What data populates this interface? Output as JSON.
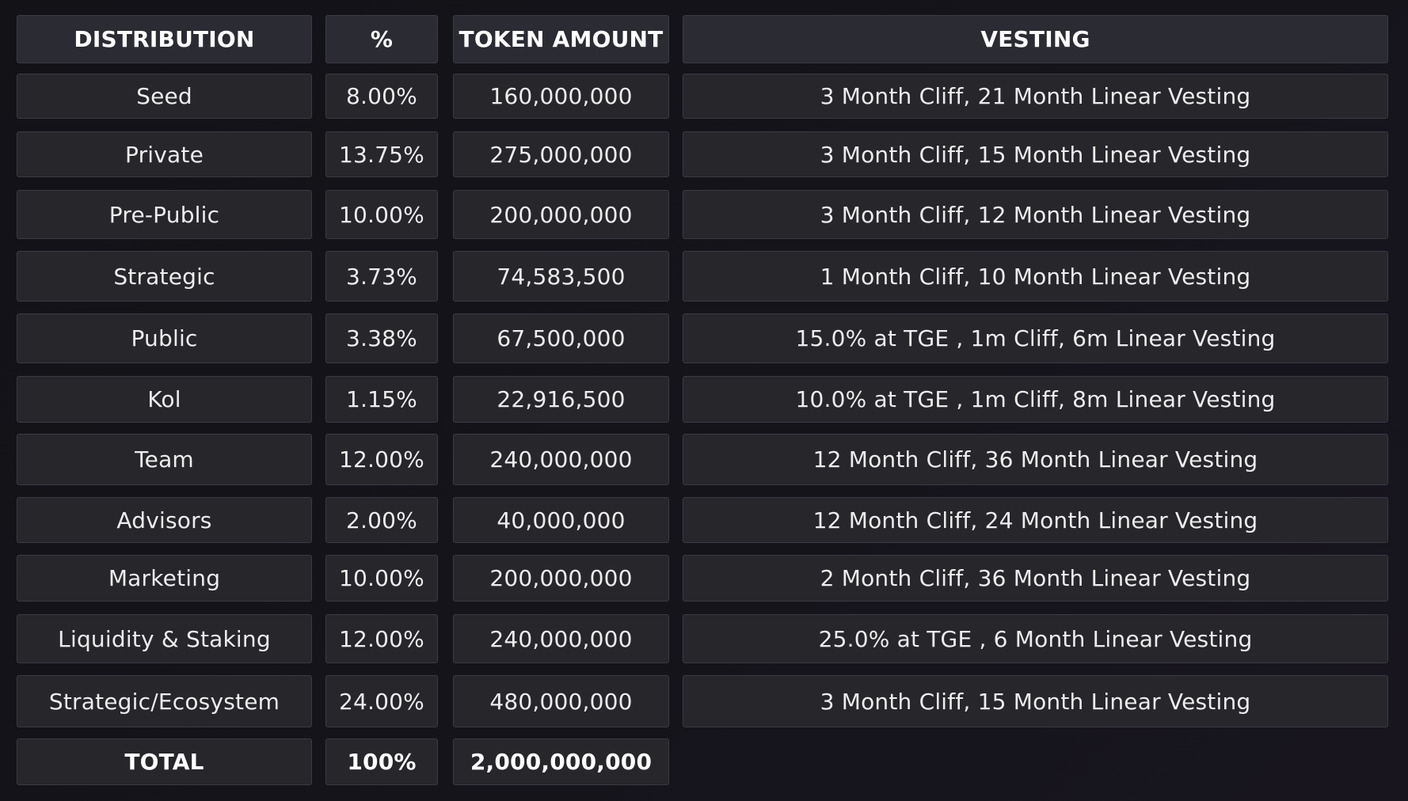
{
  "headers": {
    "distribution": "DISTRIBUTION",
    "percent": "%",
    "token_amount": "TOKEN AMOUNT",
    "vesting": "VESTING"
  },
  "rows": [
    {
      "distribution": "Seed",
      "percent": "8.00%",
      "amount": "160,000,000",
      "vesting": "3 Month Cliff, 21 Month Linear Vesting"
    },
    {
      "distribution": "Private",
      "percent": "13.75%",
      "amount": "275,000,000",
      "vesting": "3 Month Cliff, 15 Month Linear Vesting"
    },
    {
      "distribution": "Pre-Public",
      "percent": "10.00%",
      "amount": "200,000,000",
      "vesting": "3 Month Cliff, 12 Month Linear Vesting"
    },
    {
      "distribution": "Strategic",
      "percent": "3.73%",
      "amount": "74,583,500",
      "vesting": "1 Month Cliff, 10 Month Linear Vesting"
    },
    {
      "distribution": "Public",
      "percent": "3.38%",
      "amount": "67,500,000",
      "vesting": "15.0% at TGE , 1m Cliff, 6m Linear Vesting"
    },
    {
      "distribution": "Kol",
      "percent": "1.15%",
      "amount": "22,916,500",
      "vesting": "10.0% at TGE , 1m Cliff, 8m Linear Vesting"
    },
    {
      "distribution": "Team",
      "percent": "12.00%",
      "amount": "240,000,000",
      "vesting": "12 Month Cliff, 36 Month Linear Vesting"
    },
    {
      "distribution": "Advisors",
      "percent": "2.00%",
      "amount": "40,000,000",
      "vesting": "12 Month Cliff, 24 Month Linear Vesting"
    },
    {
      "distribution": "Marketing",
      "percent": "10.00%",
      "amount": "200,000,000",
      "vesting": "2 Month Cliff, 36 Month Linear Vesting"
    },
    {
      "distribution": "Liquidity & Staking",
      "percent": "12.00%",
      "amount": "240,000,000",
      "vesting": "25.0% at TGE , 6 Month Linear Vesting"
    },
    {
      "distribution": "Strategic/Ecosystem",
      "percent": "24.00%",
      "amount": "480,000,000",
      "vesting": "3 Month Cliff, 15 Month Linear Vesting"
    }
  ],
  "total": {
    "label": "TOTAL",
    "percent": "100%",
    "amount": "2,000,000,000"
  }
}
